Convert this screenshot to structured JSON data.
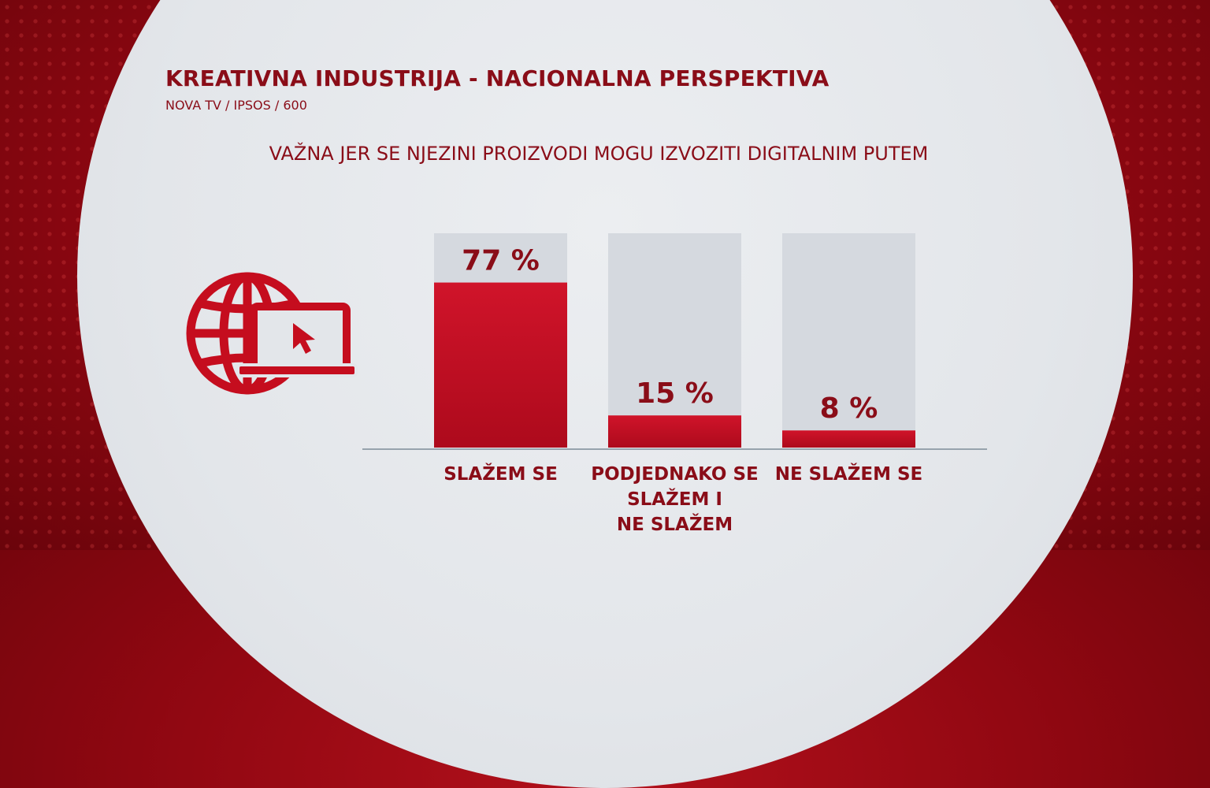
{
  "header": {
    "title": "KREATIVNA INDUSTRIJA - NACIONALNA PERSPEKTIVA",
    "source": "NOVA TV / IPSOS / 600"
  },
  "question": "VAŽNA JER SE NJEZINI PROIZVODI MOGU IZVOZITI DIGITALNIM PUTEM",
  "icon": {
    "name": "globe-laptop-cursor-icon",
    "color": "#c50d1e"
  },
  "chart_data": {
    "type": "bar",
    "categories": [
      [
        "SLAŽEM SE"
      ],
      [
        "PODJEDNAKO SE",
        "SLAŽEM I",
        "NE SLAŽEM"
      ],
      [
        "NE SLAŽEM SE"
      ]
    ],
    "values": [
      77,
      15,
      8
    ],
    "value_labels": [
      "77 %",
      "15 %",
      "8 %"
    ],
    "unit": "%",
    "ylim": [
      0,
      100
    ],
    "grid": false,
    "legend": "none",
    "bar_color": "#c50d1e",
    "track_color": "#d5d9df"
  }
}
